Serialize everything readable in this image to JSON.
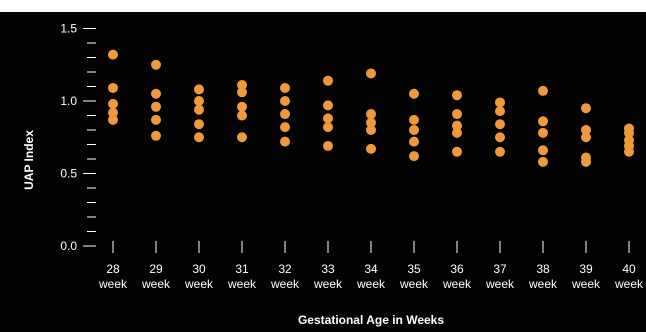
{
  "chart_data": {
    "type": "scatter",
    "title": "",
    "xlabel": "Gestational Age in Weeks",
    "ylabel": "UAP Index",
    "ylim": [
      0,
      1.5
    ],
    "y_ticks": [
      "0.0",
      "0.5",
      "1.0",
      "1.5"
    ],
    "categories": [
      "28",
      "29",
      "30",
      "31",
      "32",
      "33",
      "34",
      "35",
      "36",
      "37",
      "38",
      "39",
      "40"
    ],
    "category_sublabel": "week",
    "grid": false,
    "background": "#030303",
    "marker_color": "#f0993a",
    "text_color": "#ffffff",
    "points": [
      {
        "x": "28",
        "y": [
          1.32,
          1.09,
          0.98,
          0.92,
          0.87
        ]
      },
      {
        "x": "29",
        "y": [
          1.25,
          1.05,
          0.96,
          0.87,
          0.76
        ]
      },
      {
        "x": "30",
        "y": [
          1.08,
          1.0,
          0.94,
          0.84,
          0.75
        ]
      },
      {
        "x": "31",
        "y": [
          1.11,
          1.06,
          0.96,
          0.9,
          0.75
        ]
      },
      {
        "x": "32",
        "y": [
          1.09,
          1.0,
          0.91,
          0.82,
          0.72
        ]
      },
      {
        "x": "33",
        "y": [
          1.14,
          0.97,
          0.88,
          0.82,
          0.69
        ]
      },
      {
        "x": "34",
        "y": [
          1.19,
          0.91,
          0.85,
          0.8,
          0.67
        ]
      },
      {
        "x": "35",
        "y": [
          1.05,
          0.87,
          0.8,
          0.72,
          0.62
        ]
      },
      {
        "x": "36",
        "y": [
          1.04,
          0.91,
          0.83,
          0.78,
          0.65
        ]
      },
      {
        "x": "37",
        "y": [
          0.99,
          0.93,
          0.84,
          0.75,
          0.65
        ]
      },
      {
        "x": "38",
        "y": [
          1.07,
          0.86,
          0.78,
          0.66,
          0.58
        ]
      },
      {
        "x": "39",
        "y": [
          0.95,
          0.8,
          0.75,
          0.61,
          0.58
        ]
      },
      {
        "x": "40",
        "y": [
          0.81,
          0.78,
          0.73,
          0.69,
          0.65
        ]
      }
    ]
  }
}
